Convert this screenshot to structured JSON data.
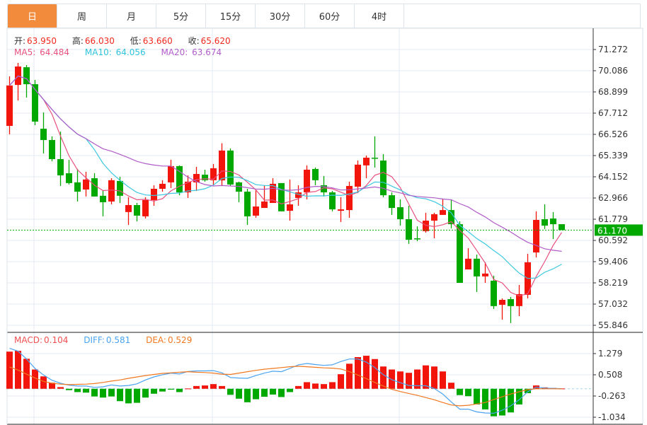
{
  "tabs": [
    {
      "label": "日",
      "active": true
    },
    {
      "label": "周"
    },
    {
      "label": "月"
    },
    {
      "label": "5分"
    },
    {
      "label": "15分"
    },
    {
      "label": "30分"
    },
    {
      "label": "60分"
    },
    {
      "label": "4时"
    }
  ],
  "ohlc_info": {
    "open_label": "开:",
    "open": "63.950",
    "high_label": "高:",
    "high": "66.030",
    "low_label": "低:",
    "low": "63.660",
    "close_label": "收:",
    "close": "65.620"
  },
  "ma_info": {
    "ma5_label": "MA5:",
    "ma5": "64.484",
    "ma10_label": "MA10:",
    "ma10": "64.056",
    "ma20_label": "MA20:",
    "ma20": "63.674"
  },
  "macd_info": {
    "macd_label": "MACD:",
    "macd": "0.104",
    "diff_label": "DIFF:",
    "diff": "0.581",
    "dea_label": "DEA:",
    "dea": "0.529"
  },
  "colors": {
    "up": "#f2150b",
    "down": "#00a800",
    "ma5": "#e8507e",
    "ma10": "#3cc8e0",
    "ma20": "#b05cc8",
    "diff": "#4aa3f0",
    "dea": "#f07820",
    "active_tab": "#f28c3c",
    "last_price": "#00a800"
  },
  "chart_data": [
    {
      "type": "candlestick",
      "price_ticks": [
        "71.272",
        "70.086",
        "68.899",
        "67.712",
        "66.526",
        "65.339",
        "64.152",
        "62.966",
        "61.779",
        "60.592",
        "59.406",
        "58.219",
        "57.032",
        "55.846"
      ],
      "ylim": [
        55.846,
        71.272
      ],
      "last_price": "61.170",
      "grid": true,
      "candles": [
        [
          67.0,
          69.77,
          66.53,
          69.26
        ],
        [
          69.29,
          70.52,
          68.42,
          70.32
        ],
        [
          70.28,
          70.4,
          68.58,
          69.33
        ],
        [
          69.33,
          69.57,
          67.04,
          67.24
        ],
        [
          66.84,
          67.75,
          65.46,
          66.21
        ],
        [
          66.21,
          66.41,
          65.02,
          65.14
        ],
        [
          65.14,
          66.68,
          63.64,
          64.23
        ],
        [
          64.35,
          65.1,
          63.72,
          63.8
        ],
        [
          63.84,
          64.59,
          62.77,
          63.32
        ],
        [
          63.44,
          64.43,
          63.05,
          64.0
        ],
        [
          64.07,
          64.35,
          63.05,
          63.05
        ],
        [
          63.09,
          63.36,
          61.94,
          62.73
        ],
        [
          62.77,
          64.07,
          62.61,
          63.96
        ],
        [
          63.92,
          64.15,
          62.69,
          63.09
        ],
        [
          62.18,
          63.01,
          61.46,
          62.57
        ],
        [
          62.57,
          62.69,
          61.66,
          61.98
        ],
        [
          61.94,
          63.01,
          61.82,
          62.85
        ],
        [
          62.85,
          63.68,
          62.53,
          63.48
        ],
        [
          63.48,
          63.96,
          63.32,
          63.76
        ],
        [
          63.84,
          65.1,
          63.52,
          64.75
        ],
        [
          64.75,
          64.79,
          63.12,
          63.28
        ],
        [
          63.28,
          64.23,
          62.97,
          63.88
        ],
        [
          63.84,
          64.71,
          63.36,
          64.31
        ],
        [
          64.27,
          64.55,
          63.88,
          63.96
        ],
        [
          63.96,
          64.87,
          63.68,
          64.63
        ],
        [
          63.95,
          66.03,
          63.66,
          65.62
        ],
        [
          65.62,
          65.74,
          63.64,
          63.72
        ],
        [
          63.84,
          63.88,
          62.73,
          63.32
        ],
        [
          63.32,
          63.48,
          61.46,
          61.94
        ],
        [
          61.98,
          63.4,
          61.86,
          62.49
        ],
        [
          62.41,
          63.68,
          62.41,
          62.77
        ],
        [
          62.69,
          64.07,
          62.69,
          63.76
        ],
        [
          63.8,
          63.8,
          62.22,
          62.22
        ],
        [
          62.25,
          64.0,
          61.7,
          62.61
        ],
        [
          62.97,
          63.68,
          62.53,
          63.28
        ],
        [
          63.28,
          64.79,
          62.89,
          64.55
        ],
        [
          64.59,
          64.67,
          63.68,
          63.96
        ],
        [
          63.68,
          64.19,
          63.05,
          63.28
        ],
        [
          63.28,
          63.36,
          62.22,
          62.33
        ],
        [
          62.25,
          63.01,
          61.62,
          62.33
        ],
        [
          62.29,
          63.88,
          61.86,
          63.64
        ],
        [
          63.6,
          65.06,
          63.24,
          64.83
        ],
        [
          64.79,
          65.34,
          64.07,
          65.22
        ],
        [
          65.22,
          66.41,
          64.67,
          65.18
        ],
        [
          65.06,
          65.42,
          63.01,
          63.12
        ],
        [
          63.12,
          63.28,
          62.02,
          62.41
        ],
        [
          62.45,
          62.89,
          61.42,
          61.78
        ],
        [
          61.78,
          62.53,
          60.4,
          60.63
        ],
        [
          60.71,
          61.38,
          60.55,
          60.67
        ],
        [
          61.11,
          62.14,
          61.03,
          61.7
        ],
        [
          61.7,
          62.14,
          60.71,
          62.06
        ],
        [
          62.02,
          62.93,
          62.02,
          62.29
        ],
        [
          62.29,
          62.89,
          61.27,
          61.5
        ],
        [
          61.5,
          61.66,
          58.22,
          58.22
        ],
        [
          58.97,
          60.16,
          58.97,
          59.57
        ],
        [
          59.57,
          59.8,
          57.71,
          58.58
        ],
        [
          58.58,
          59.37,
          58.22,
          58.74
        ],
        [
          58.34,
          58.62,
          56.76,
          56.92
        ],
        [
          56.99,
          57.35,
          56.16,
          57.27
        ],
        [
          57.31,
          57.43,
          55.97,
          56.92
        ],
        [
          56.92,
          58.1,
          56.36,
          57.59
        ],
        [
          57.55,
          59.84,
          57.35,
          59.37
        ],
        [
          59.92,
          62.22,
          59.64,
          61.74
        ],
        [
          61.78,
          62.61,
          61.23,
          61.42
        ],
        [
          61.82,
          62.18,
          60.67,
          61.5
        ],
        [
          61.5,
          61.5,
          61.17,
          61.17
        ]
      ],
      "ma_periods": [
        5,
        10,
        20
      ]
    },
    {
      "type": "macd",
      "ticks": [
        "1.279",
        "0.508",
        "-0.263",
        "-1.034"
      ],
      "ylim": [
        -1.034,
        1.279
      ],
      "macd": [
        1.35,
        1.38,
        1.09,
        0.7,
        0.45,
        0.22,
        0.06,
        -0.05,
        -0.12,
        -0.14,
        -0.28,
        -0.32,
        -0.28,
        -0.45,
        -0.53,
        -0.51,
        -0.32,
        -0.18,
        -0.1,
        -0.03,
        -0.12,
        0.01,
        0.1,
        0.12,
        0.17,
        0.1,
        -0.22,
        -0.36,
        -0.49,
        -0.38,
        -0.29,
        -0.21,
        -0.3,
        -0.12,
        0.1,
        0.24,
        0.19,
        0.17,
        0.24,
        0.53,
        0.91,
        1.15,
        1.2,
        1.08,
        0.81,
        0.7,
        0.63,
        0.58,
        0.7,
        0.85,
        0.81,
        0.63,
        0.22,
        -0.23,
        -0.27,
        -0.57,
        -0.75,
        -1.0,
        -0.97,
        -0.86,
        -0.57,
        -0.16,
        0.12,
        0.05,
        0.03,
        0.01
      ],
      "dea": [
        0.79,
        0.68,
        0.53,
        0.39,
        0.27,
        0.2,
        0.17,
        0.15,
        0.16,
        0.17,
        0.19,
        0.23,
        0.28,
        0.32,
        0.38,
        0.43,
        0.48,
        0.52,
        0.56,
        0.58,
        0.6,
        0.62,
        0.6,
        0.59,
        0.57,
        0.53,
        0.52,
        0.57,
        0.62,
        0.67,
        0.71,
        0.74,
        0.77,
        0.8,
        0.82,
        0.8,
        0.78,
        0.76,
        0.75,
        0.72,
        0.62,
        0.5,
        0.37,
        0.23,
        0.1,
        -0.02,
        -0.1,
        -0.17,
        -0.24,
        -0.32,
        -0.4,
        -0.5,
        -0.59,
        -0.62,
        -0.6,
        -0.55,
        -0.5,
        -0.39,
        -0.29,
        -0.19,
        -0.11,
        -0.03,
        0.0,
        0.0,
        0.0,
        0.0
      ],
      "diff": [
        1.47,
        1.37,
        1.08,
        0.74,
        0.5,
        0.31,
        0.2,
        0.13,
        0.1,
        0.1,
        0.05,
        0.07,
        0.14,
        0.1,
        0.12,
        0.18,
        0.32,
        0.43,
        0.51,
        0.57,
        0.54,
        0.63,
        0.65,
        0.65,
        0.66,
        0.58,
        0.41,
        0.39,
        0.38,
        0.48,
        0.57,
        0.64,
        0.62,
        0.74,
        0.87,
        0.92,
        0.88,
        0.85,
        0.87,
        0.99,
        1.08,
        1.08,
        0.97,
        0.77,
        0.51,
        0.33,
        0.22,
        0.12,
        0.11,
        0.11,
        0.01,
        -0.19,
        -0.48,
        -0.74,
        -0.74,
        -0.84,
        -0.88,
        -0.89,
        -0.78,
        -0.62,
        -0.4,
        -0.11,
        0.06,
        0.025,
        0.015,
        0.005
      ]
    }
  ]
}
